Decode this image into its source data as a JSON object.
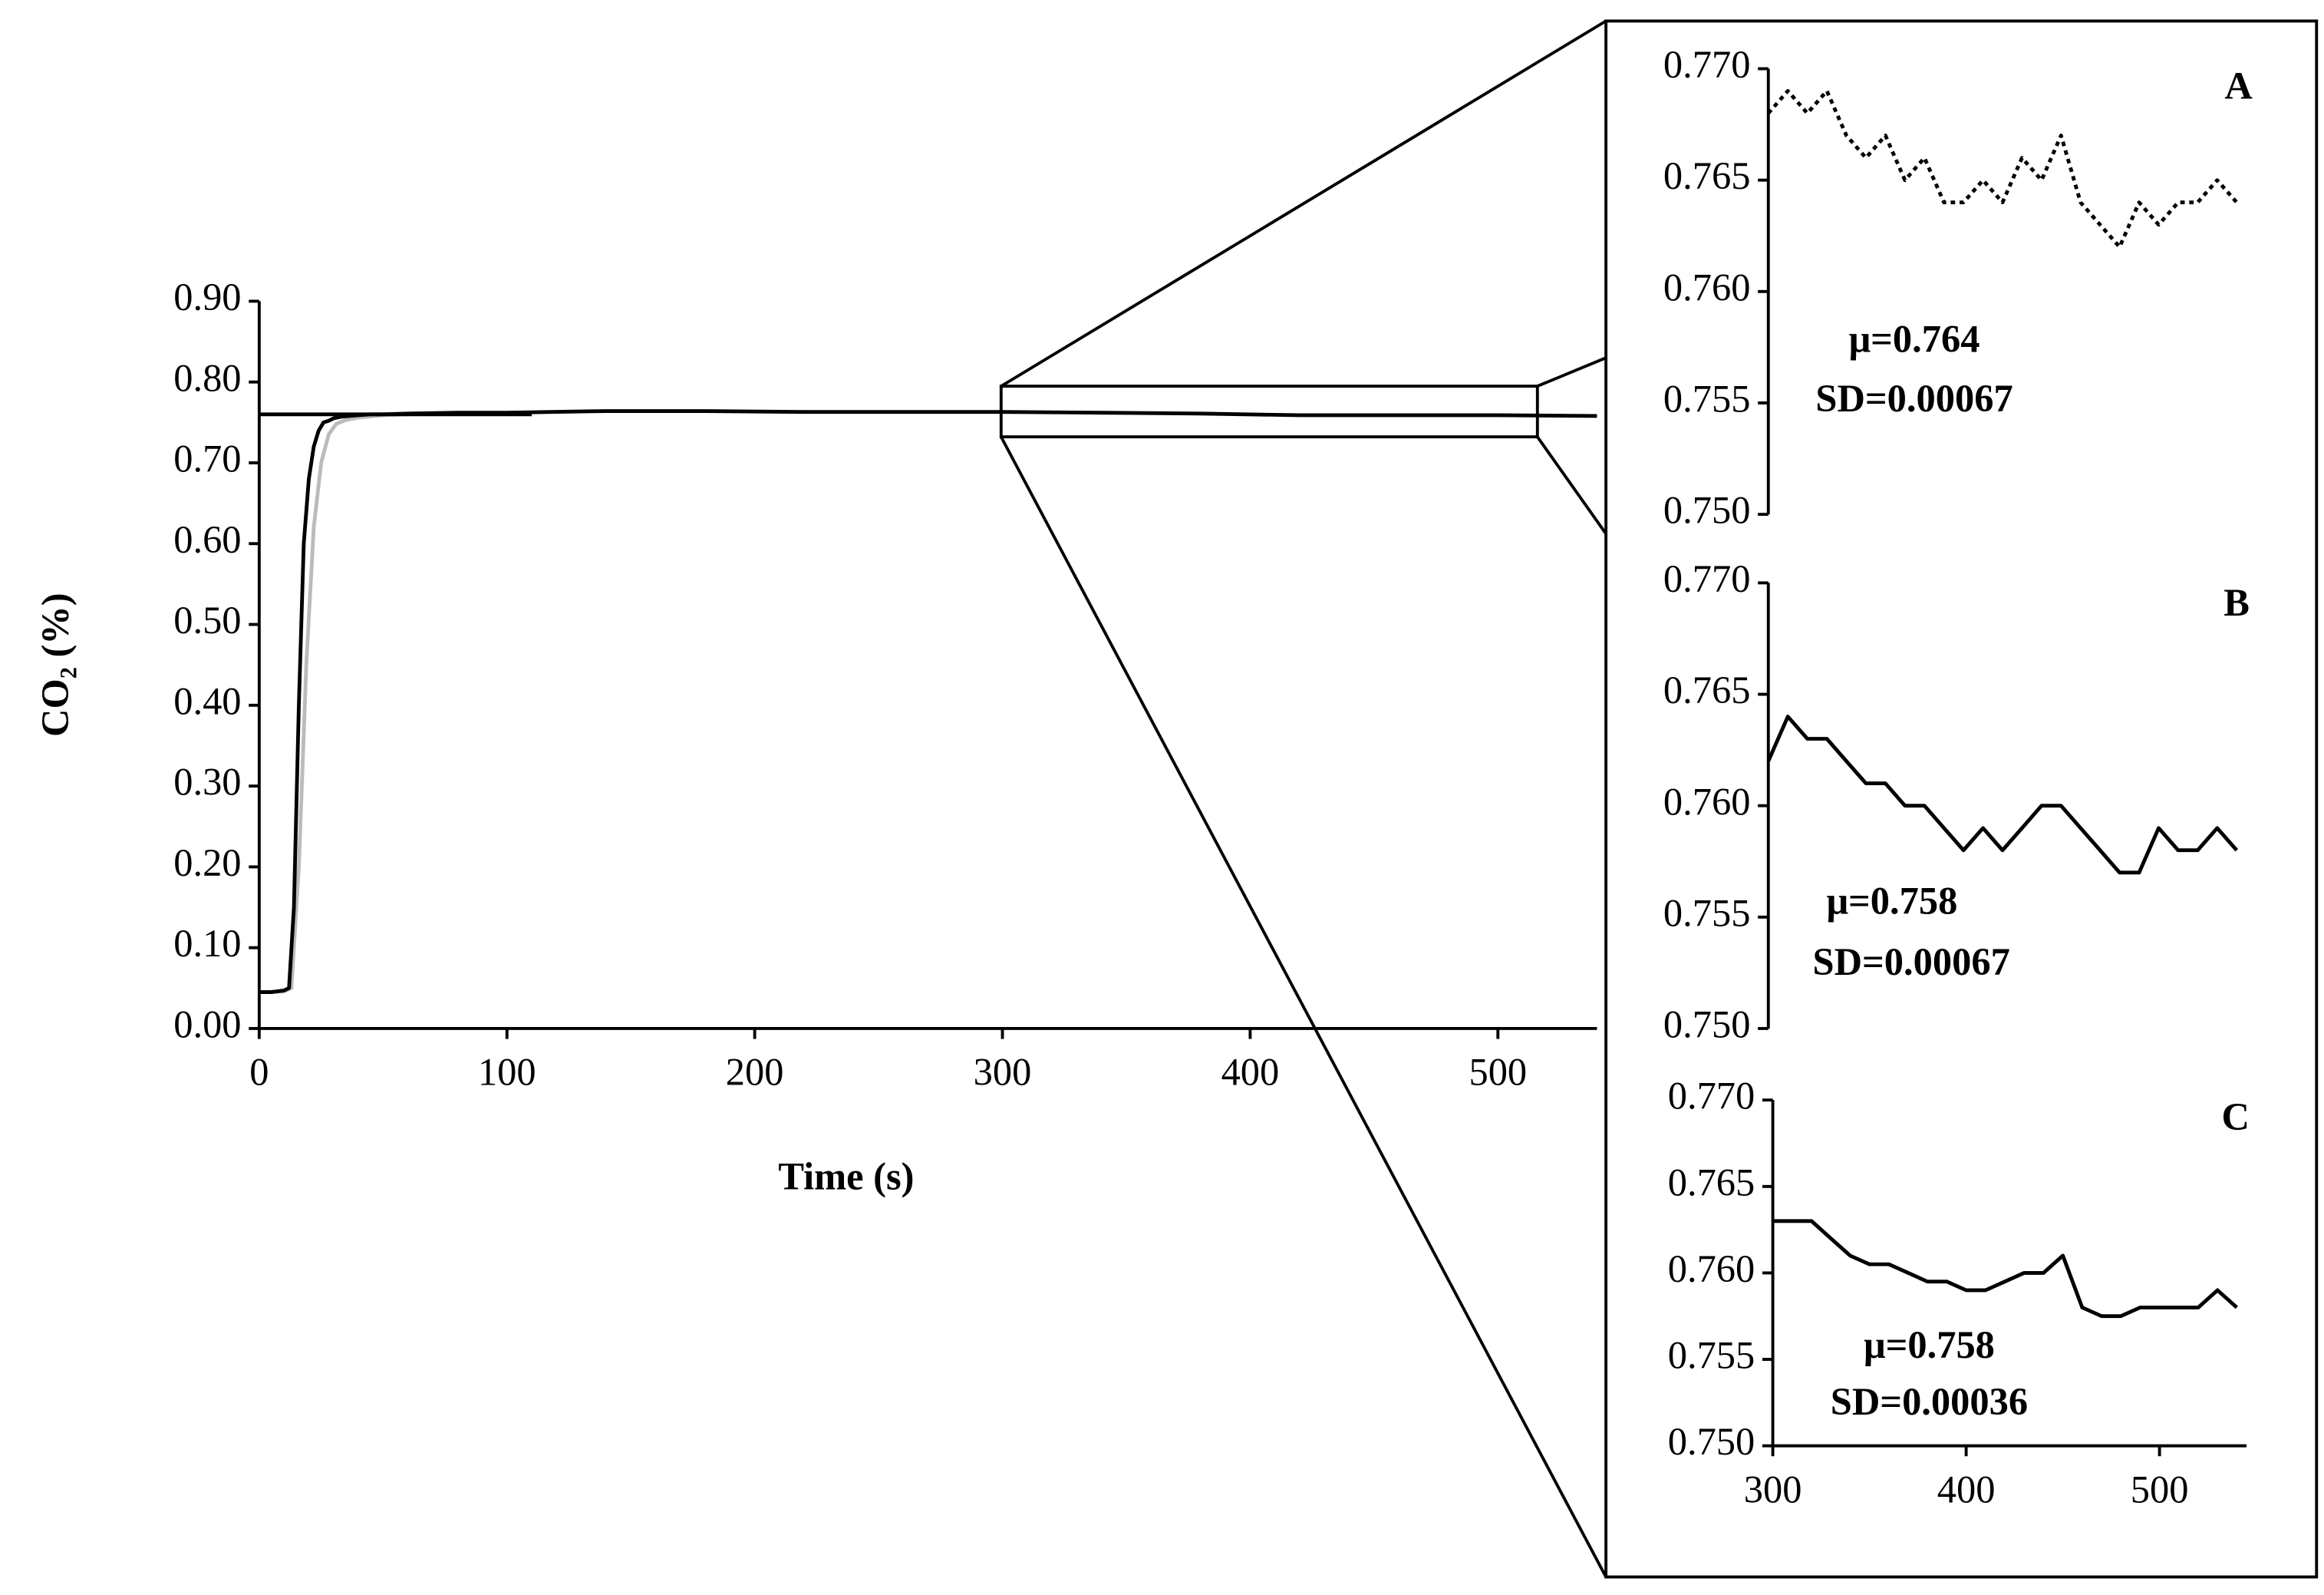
{
  "chart_data": [
    {
      "type": "line",
      "xlabel": "Time (s)",
      "ylabel": "CO₂ (%)",
      "xlim": [
        0,
        540
      ],
      "ylim": [
        0,
        0.9
      ],
      "xticks": [
        0,
        100,
        200,
        300,
        400,
        500
      ],
      "yticks": [
        {
          "value": 0,
          "label": "0.00"
        },
        {
          "value": 0.1,
          "label": "0.10"
        },
        {
          "value": 0.2,
          "label": "0.20"
        },
        {
          "value": 0.3,
          "label": "0.30"
        },
        {
          "value": 0.4,
          "label": "0.40"
        },
        {
          "value": 0.5,
          "label": "0.50"
        },
        {
          "value": 0.6,
          "label": "0.60"
        },
        {
          "value": 0.7,
          "label": "0.70"
        },
        {
          "value": 0.8,
          "label": "0.80"
        },
        {
          "value": 0.9,
          "label": "0.90"
        }
      ],
      "series": [
        {
          "color": "#bbbbbb",
          "x": [
            0,
            10,
            13,
            16,
            19,
            22,
            25,
            28,
            31,
            35,
            40,
            50,
            60
          ],
          "values": [
            0.045,
            0.046,
            0.05,
            0.2,
            0.45,
            0.62,
            0.7,
            0.735,
            0.748,
            0.753,
            0.756,
            0.759,
            0.76
          ]
        },
        {
          "color": "#000000",
          "x": [
            0,
            5,
            10,
            12,
            14,
            16,
            18,
            20,
            22,
            24,
            26,
            28,
            30,
            33,
            36,
            40,
            45,
            50,
            60,
            80,
            100,
            140,
            180,
            220,
            260,
            300,
            340,
            380,
            420,
            460,
            500,
            540
          ],
          "values": [
            0.045,
            0.045,
            0.047,
            0.05,
            0.15,
            0.4,
            0.6,
            0.68,
            0.72,
            0.74,
            0.75,
            0.752,
            0.755,
            0.757,
            0.758,
            0.759,
            0.76,
            0.76,
            0.761,
            0.762,
            0.762,
            0.764,
            0.764,
            0.763,
            0.763,
            0.763,
            0.762,
            0.761,
            0.759,
            0.759,
            0.759,
            0.758
          ]
        },
        {
          "color": "#000000",
          "x": [
            0,
            110
          ],
          "values": [
            0.76,
            0.76
          ]
        }
      ]
    },
    {
      "type": "line",
      "label": "A",
      "annotations": [
        "μ=0.764",
        "SD=0.00067"
      ],
      "xlim": [
        300,
        545
      ],
      "ylim": [
        0.75,
        0.77
      ],
      "yticks": [
        {
          "value": 0.75,
          "label": "0.750"
        },
        {
          "value": 0.755,
          "label": "0.755"
        },
        {
          "value": 0.76,
          "label": "0.760"
        },
        {
          "value": 0.765,
          "label": "0.765"
        },
        {
          "value": 0.77,
          "label": "0.770"
        }
      ],
      "series": [
        {
          "color": "#000000",
          "dash": "3 3",
          "x": [
            300,
            310,
            320,
            330,
            340,
            350,
            360,
            370,
            380,
            390,
            400,
            410,
            420,
            430,
            440,
            450,
            460,
            470,
            480,
            490,
            500,
            510,
            520,
            530,
            540
          ],
          "values": [
            0.768,
            0.769,
            0.768,
            0.769,
            0.767,
            0.766,
            0.767,
            0.765,
            0.766,
            0.764,
            0.764,
            0.765,
            0.764,
            0.766,
            0.765,
            0.767,
            0.764,
            0.763,
            0.762,
            0.764,
            0.763,
            0.764,
            0.764,
            0.765,
            0.764
          ]
        }
      ]
    },
    {
      "type": "line",
      "label": "B",
      "annotations": [
        "μ=0.758",
        "SD=0.00067"
      ],
      "xlim": [
        300,
        545
      ],
      "ylim": [
        0.75,
        0.77
      ],
      "yticks": [
        {
          "value": 0.75,
          "label": "0.750"
        },
        {
          "value": 0.755,
          "label": "0.755"
        },
        {
          "value": 0.76,
          "label": "0.760"
        },
        {
          "value": 0.765,
          "label": "0.765"
        },
        {
          "value": 0.77,
          "label": "0.770"
        }
      ],
      "series": [
        {
          "color": "#000000",
          "x": [
            300,
            310,
            320,
            330,
            340,
            350,
            360,
            370,
            380,
            390,
            400,
            410,
            420,
            430,
            440,
            450,
            460,
            470,
            480,
            490,
            500,
            510,
            520,
            530,
            540
          ],
          "values": [
            0.762,
            0.764,
            0.763,
            0.763,
            0.762,
            0.761,
            0.761,
            0.76,
            0.76,
            0.759,
            0.758,
            0.759,
            0.758,
            0.759,
            0.76,
            0.76,
            0.759,
            0.758,
            0.757,
            0.757,
            0.759,
            0.758,
            0.758,
            0.759,
            0.758
          ]
        }
      ]
    },
    {
      "type": "line",
      "label": "C",
      "annotations": [
        "μ=0.758",
        "SD=0.00036"
      ],
      "xlim": [
        300,
        545
      ],
      "ylim": [
        0.75,
        0.77
      ],
      "xticks": [
        300,
        400,
        500
      ],
      "yticks": [
        {
          "value": 0.75,
          "label": "0.750"
        },
        {
          "value": 0.755,
          "label": "0.755"
        },
        {
          "value": 0.76,
          "label": "0.760"
        },
        {
          "value": 0.765,
          "label": "0.765"
        },
        {
          "value": 0.77,
          "label": "0.770"
        }
      ],
      "series": [
        {
          "color": "#000000",
          "x": [
            300,
            310,
            320,
            330,
            340,
            350,
            360,
            370,
            380,
            390,
            400,
            410,
            420,
            430,
            440,
            450,
            460,
            470,
            480,
            490,
            500,
            510,
            520,
            530,
            540
          ],
          "values": [
            0.763,
            0.763,
            0.763,
            0.762,
            0.761,
            0.7605,
            0.7605,
            0.76,
            0.7595,
            0.7595,
            0.759,
            0.759,
            0.7595,
            0.76,
            0.76,
            0.761,
            0.758,
            0.7575,
            0.7575,
            0.758,
            0.758,
            0.758,
            0.758,
            0.759,
            0.758
          ]
        }
      ]
    }
  ]
}
